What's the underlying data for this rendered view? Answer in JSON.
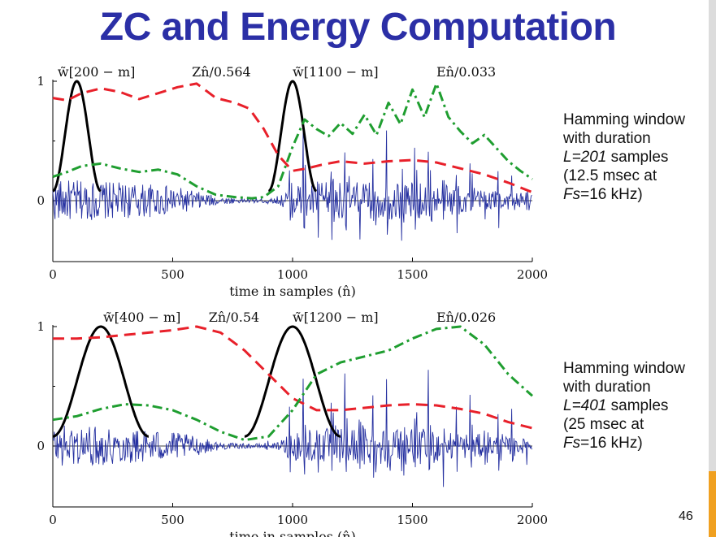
{
  "slide": {
    "title": "ZC and Energy Computation",
    "page_number": "46",
    "title_color": "#2b2fa6",
    "accent_color": "#f0a020"
  },
  "side_notes": [
    {
      "line1": "Hamming window",
      "line2": "with duration",
      "line3_value": "L=201",
      "line3_rest": " samples",
      "line4": "(12.5 msec at",
      "line5_value": "Fs",
      "line5_rest": "=16 kHz)"
    },
    {
      "line1": "Hamming window",
      "line2": "with duration",
      "line3_value": "L=401",
      "line3_rest": " samples",
      "line4": "(25 msec at",
      "line5_value": "Fs",
      "line5_rest": "=16 kHz)"
    }
  ],
  "chart_data": [
    {
      "type": "line",
      "xlabel": "time in samples (n̂)",
      "xlim": [
        0,
        2000
      ],
      "ylim": [
        -0.45,
        1.02
      ],
      "x_ticks": [
        "0",
        "500",
        "1000",
        "1500",
        "2000"
      ],
      "y_ticks": [
        "0",
        "1"
      ],
      "annotations": [
        {
          "text": "w̃[200 − m]",
          "x": 20,
          "y": 1.05
        },
        {
          "text": "Zn̂/0.564",
          "x": 580,
          "y": 1.05
        },
        {
          "text": "w̃[1100 − m]",
          "x": 1000,
          "y": 1.05
        },
        {
          "text": "En̂/0.033",
          "x": 1600,
          "y": 1.05
        }
      ],
      "series": [
        {
          "name": "w̃[200 − m]",
          "color": "#000000",
          "style": "solid",
          "window_center": 100,
          "window_length": 201
        },
        {
          "name": "w̃[1100 − m]",
          "color": "#000000",
          "style": "solid",
          "window_center": 1000,
          "window_length": 201
        },
        {
          "name": "Zn̂/0.564",
          "color": "#e8202a",
          "style": "dashed",
          "x": [
            0,
            60,
            120,
            200,
            280,
            360,
            440,
            520,
            600,
            680,
            760,
            820,
            880,
            940,
            1000,
            1060,
            1120,
            1200,
            1300,
            1400,
            1500,
            1600,
            1700,
            1800,
            1900,
            2000
          ],
          "y": [
            0.86,
            0.84,
            0.9,
            0.94,
            0.91,
            0.85,
            0.9,
            0.95,
            0.98,
            0.86,
            0.82,
            0.77,
            0.6,
            0.38,
            0.25,
            0.27,
            0.3,
            0.33,
            0.31,
            0.33,
            0.34,
            0.32,
            0.27,
            0.22,
            0.15,
            0.07
          ]
        },
        {
          "name": "En̂/0.033",
          "color": "#1f9e30",
          "style": "dashdot",
          "x": [
            0,
            60,
            120,
            200,
            280,
            360,
            440,
            520,
            600,
            680,
            760,
            830,
            880,
            940,
            1000,
            1050,
            1100,
            1150,
            1200,
            1250,
            1300,
            1350,
            1400,
            1450,
            1500,
            1550,
            1600,
            1650,
            1700,
            1750,
            1800,
            1850,
            1900,
            1950,
            2000
          ],
          "y": [
            0.2,
            0.24,
            0.29,
            0.31,
            0.27,
            0.24,
            0.26,
            0.22,
            0.12,
            0.05,
            0.03,
            0.02,
            0.03,
            0.12,
            0.45,
            0.68,
            0.6,
            0.54,
            0.65,
            0.56,
            0.72,
            0.55,
            0.82,
            0.64,
            0.93,
            0.7,
            0.98,
            0.7,
            0.58,
            0.48,
            0.55,
            0.44,
            0.33,
            0.25,
            0.18
          ]
        },
        {
          "name": "speech signal",
          "color": "#2530a0",
          "style": "thin",
          "envelope_x": [
            0,
            100,
            200,
            300,
            400,
            500,
            600,
            700,
            800,
            880,
            940,
            1000,
            1100,
            1200,
            1300,
            1400,
            1500,
            1600,
            1700,
            1800,
            1900,
            2000
          ],
          "envelope_y": [
            0.17,
            0.17,
            0.16,
            0.15,
            0.14,
            0.12,
            0.08,
            0.03,
            0.02,
            0.02,
            0.12,
            0.55,
            0.6,
            0.62,
            0.62,
            0.62,
            0.62,
            0.55,
            0.45,
            0.4,
            0.3,
            0.22
          ],
          "pulse_period": 58
        }
      ]
    },
    {
      "type": "line",
      "xlabel": "time in samples (n̂)",
      "xlim": [
        0,
        2000
      ],
      "ylim": [
        -0.45,
        1.02
      ],
      "x_ticks": [
        "0",
        "500",
        "1000",
        "1500",
        "2000"
      ],
      "y_ticks": [
        "0",
        "1"
      ],
      "annotations": [
        {
          "text": "w̃[400 − m]",
          "x": 210,
          "y": 1.05
        },
        {
          "text": "Zn̂/0.54",
          "x": 650,
          "y": 1.05
        },
        {
          "text": "w̃[1200 − m]",
          "x": 1000,
          "y": 1.05
        },
        {
          "text": "En̂/0.026",
          "x": 1600,
          "y": 1.05
        }
      ],
      "series": [
        {
          "name": "w̃[400 − m]",
          "color": "#000000",
          "style": "solid",
          "window_center": 200,
          "window_length": 401
        },
        {
          "name": "w̃[1200 − m]",
          "color": "#000000",
          "style": "solid",
          "window_center": 1000,
          "window_length": 401
        },
        {
          "name": "Zn̂/0.54",
          "color": "#e8202a",
          "style": "dashed",
          "x": [
            0,
            100,
            200,
            300,
            400,
            500,
            600,
            700,
            800,
            900,
            1000,
            1100,
            1200,
            1300,
            1400,
            1500,
            1600,
            1700,
            1800,
            1900,
            2000
          ],
          "y": [
            0.9,
            0.9,
            0.91,
            0.93,
            0.95,
            0.97,
            1.0,
            0.95,
            0.8,
            0.6,
            0.4,
            0.3,
            0.3,
            0.32,
            0.34,
            0.35,
            0.34,
            0.31,
            0.27,
            0.2,
            0.15
          ]
        },
        {
          "name": "En̂/0.026",
          "color": "#1f9e30",
          "style": "dashdot",
          "x": [
            0,
            100,
            200,
            300,
            400,
            500,
            600,
            700,
            800,
            900,
            1000,
            1100,
            1200,
            1300,
            1400,
            1500,
            1600,
            1700,
            1800,
            1900,
            2000
          ],
          "y": [
            0.22,
            0.25,
            0.31,
            0.35,
            0.34,
            0.3,
            0.22,
            0.12,
            0.05,
            0.08,
            0.3,
            0.6,
            0.7,
            0.75,
            0.8,
            0.9,
            0.98,
            1.0,
            0.85,
            0.6,
            0.42
          ]
        },
        {
          "name": "speech signal",
          "color": "#2530a0",
          "style": "thin",
          "envelope_x": [
            0,
            100,
            200,
            300,
            400,
            500,
            600,
            700,
            800,
            880,
            940,
            1000,
            1100,
            1200,
            1300,
            1400,
            1500,
            1600,
            1700,
            1800,
            1900,
            2000
          ],
          "envelope_y": [
            0.17,
            0.17,
            0.16,
            0.15,
            0.14,
            0.12,
            0.08,
            0.03,
            0.02,
            0.02,
            0.12,
            0.55,
            0.6,
            0.62,
            0.62,
            0.62,
            0.62,
            0.55,
            0.45,
            0.4,
            0.3,
            0.22
          ],
          "pulse_period": 58
        }
      ]
    }
  ]
}
